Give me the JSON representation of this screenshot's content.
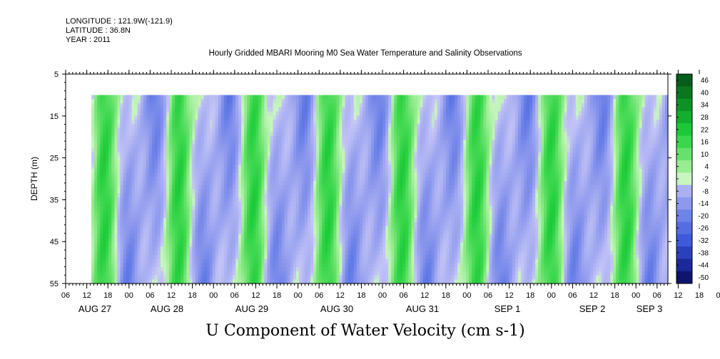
{
  "header": {
    "longitude": "LONGITUDE : 121.9W(-121.9)",
    "latitude": "LATITUDE : 36.8N",
    "year": "YEAR : 2011"
  },
  "chart_data": {
    "type": "heatmap",
    "title": "Hourly Gridded MBARI Mooring M0 Sea Water Temperature and Salinity Observations",
    "xlabel_bottom": "U Component of Water Velocity (cm s-1)",
    "ylabel": "DEPTH (m)",
    "y_ticks": [
      5,
      15,
      25,
      35,
      45,
      55
    ],
    "ylim": [
      5,
      55
    ],
    "y_reversed": true,
    "data_depth_range": [
      10,
      55
    ],
    "x_hour_ticks": [
      "06",
      "12",
      "18",
      "00",
      "06",
      "12",
      "18",
      "00",
      "06",
      "12",
      "18",
      "00",
      "06",
      "12",
      "18",
      "00",
      "06",
      "12",
      "18",
      "00",
      "06",
      "12",
      "18",
      "00",
      "06",
      "12",
      "18",
      "00",
      "06",
      "12",
      "18",
      "00",
      "06"
    ],
    "x_day_labels": [
      "AUG 27",
      "AUG 28",
      "AUG 29",
      "AUG 30",
      "AUG 31",
      "SEP  1",
      "SEP  2",
      "SEP  3"
    ],
    "colorbar": {
      "labels": [
        "46",
        "40",
        "34",
        "28",
        "22",
        "16",
        "10",
        "4",
        "-2",
        "-8",
        "-14",
        "-20",
        "-26",
        "-32",
        "-38",
        "-44",
        "-50"
      ],
      "range": [
        -50,
        52
      ]
    },
    "colors": {
      "positive_mid": "#3fdc55",
      "positive_low": "#a3f0a0",
      "negative_low": "#b4b4f0",
      "negative_mid": "#6a7ae6"
    },
    "columns_note": "U velocity oscillates at roughly diurnal/semidiurnal period between about +22 and -20 cm/s",
    "series": [
      {
        "period_hours": 24.8,
        "amplitude": 14
      },
      {
        "period_hours": 12.4,
        "amplitude": 8
      }
    ]
  }
}
